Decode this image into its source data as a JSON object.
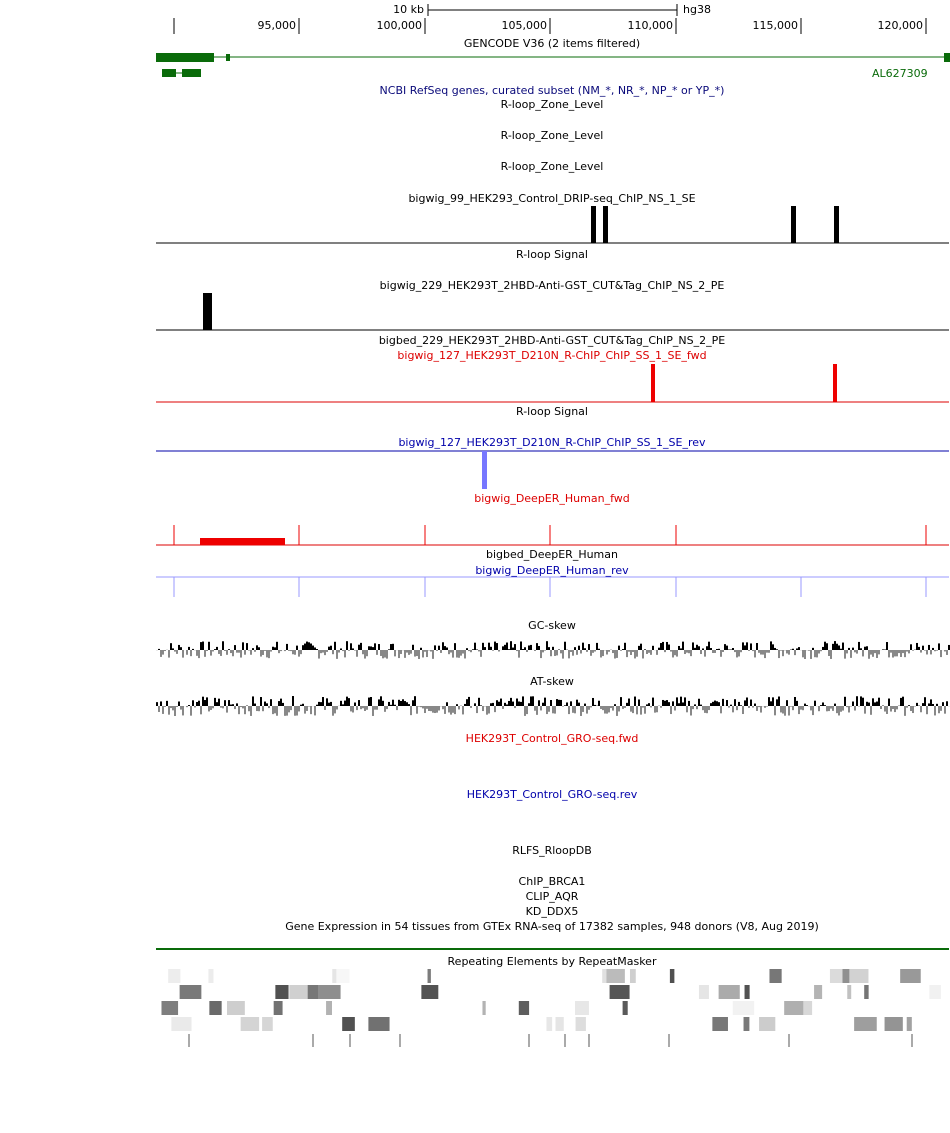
{
  "ruler": {
    "scale": "10 kb",
    "assembly": "hg38",
    "ticks": [
      "95,000",
      "100,000",
      "105,000",
      "110,000",
      "115,000",
      "120,000"
    ]
  },
  "gene_label": "AL627309",
  "tracks": [
    "GENCODE V36 (2 items filtered)",
    "NCBI RefSeq genes, curated subset (NM_*, NR_*, NP_* or YP_*)",
    "R-loop_Zone_Level",
    "R-loop_Zone_Level",
    "R-loop_Zone_Level",
    "bigwig_99_HEK293_Control_DRIP-seq_ChIP_NS_1_SE",
    "R-loop Signal",
    "bigwig_229_HEK293T_2HBD-Anti-GST_CUT&Tag_ChIP_NS_2_PE",
    "bigbed_229_HEK293T_2HBD-Anti-GST_CUT&Tag_ChIP_NS_2_PE",
    "bigwig_127_HEK293T_D210N_R-ChIP_ChIP_SS_1_SE_fwd",
    "R-loop Signal",
    "bigwig_127_HEK293T_D210N_R-ChIP_ChIP_SS_1_SE_rev",
    "bigwig_DeepER_Human_fwd",
    "bigbed_DeepER_Human",
    "bigwig_DeepER_Human_rev",
    "GC-skew",
    "AT-skew",
    "HEK293T_Control_GRO-seq.fwd",
    "HEK293T_Control_GRO-seq.rev",
    "RLFS_RloopDB",
    "ChIP_BRCA1",
    "CLIP_AQR",
    "KD_DDX5",
    "Gene Expression in 54 tissues from GTEx RNA-seq of 17382 samples, 948 donors (V8, Aug 2019)",
    "Repeating Elements by RepeatMasker"
  ]
}
